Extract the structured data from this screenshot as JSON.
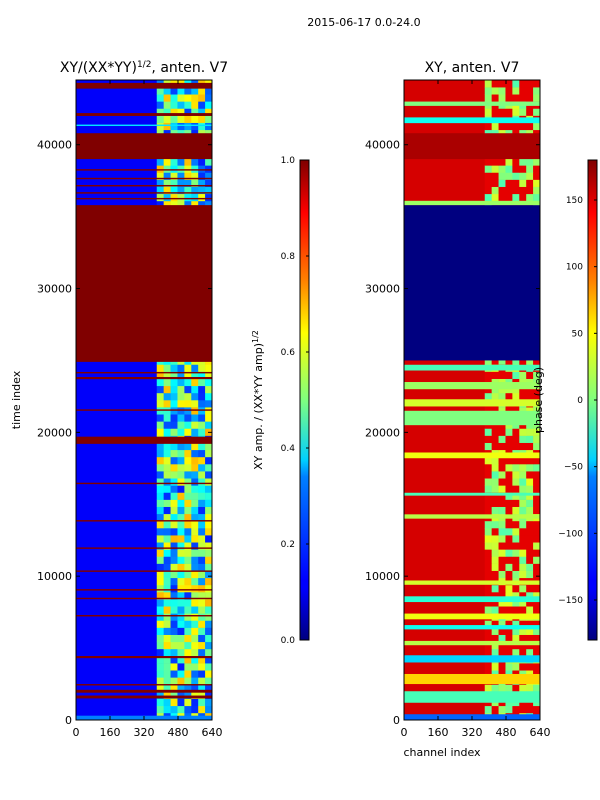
{
  "suptitle": "2015-06-17 0.0-24.0",
  "xlabel": "channel index",
  "colors": {
    "low": "#00007f",
    "mid": "#7fff7f",
    "high": "#7f0000",
    "edge": "#000000"
  },
  "chart_data": [
    {
      "type": "heatmap",
      "title_prefix": "XY/(XX*YY)",
      "title_exp": "1/2",
      "title_suffix": ", anten. V7",
      "xlabel": "",
      "ylabel": "time index",
      "xlim": [
        0,
        640
      ],
      "ylim": [
        0,
        44500
      ],
      "xticks": [
        0,
        160,
        320,
        480,
        640
      ],
      "yticks": [
        0,
        10000,
        20000,
        30000,
        40000
      ],
      "colorbar": {
        "label_prefix": "XY amp. / (XX*YY amp)",
        "label_exp": "1/2",
        "range": [
          0.0,
          1.0
        ],
        "ticks": [
          "0.0",
          "0.2",
          "0.4",
          "0.6",
          "0.8",
          "1.0"
        ]
      },
      "background_value": 0.12,
      "bright_columns": [
        380,
        640
      ],
      "bands": [
        {
          "from": 0,
          "to": 300,
          "value": 0.25
        },
        {
          "from": 1500,
          "to": 1700,
          "value": 1.0
        },
        {
          "from": 1900,
          "to": 2100,
          "value": 1.0
        },
        {
          "from": 2400,
          "to": 2500,
          "value": 1.0
        },
        {
          "from": 4300,
          "to": 4450,
          "value": 1.0
        },
        {
          "from": 7200,
          "to": 7300,
          "value": 1.0
        },
        {
          "from": 8400,
          "to": 8500,
          "value": 1.0
        },
        {
          "from": 9000,
          "to": 9100,
          "value": 1.0
        },
        {
          "from": 10300,
          "to": 10400,
          "value": 1.0
        },
        {
          "from": 11900,
          "to": 12000,
          "value": 1.0
        },
        {
          "from": 13800,
          "to": 13900,
          "value": 1.0
        },
        {
          "from": 16400,
          "to": 16500,
          "value": 1.0
        },
        {
          "from": 19200,
          "to": 19700,
          "value": 1.0
        },
        {
          "from": 21500,
          "to": 21600,
          "value": 1.0
        },
        {
          "from": 23700,
          "to": 23850,
          "value": 1.0
        },
        {
          "from": 24100,
          "to": 24200,
          "value": 1.0
        },
        {
          "from": 24900,
          "to": 35800,
          "value": 1.0
        },
        {
          "from": 36200,
          "to": 36300,
          "value": 1.0
        },
        {
          "from": 36600,
          "to": 36700,
          "value": 1.0
        },
        {
          "from": 37100,
          "to": 37200,
          "value": 1.0
        },
        {
          "from": 37600,
          "to": 37700,
          "value": 1.0
        },
        {
          "from": 38200,
          "to": 38300,
          "value": 1.0
        },
        {
          "from": 39000,
          "to": 40800,
          "value": 1.0
        },
        {
          "from": 41300,
          "to": 41400,
          "value": 0.35
        },
        {
          "from": 42000,
          "to": 42200,
          "value": 1.0
        },
        {
          "from": 43900,
          "to": 44300,
          "value": 1.0
        }
      ]
    },
    {
      "type": "heatmap",
      "title_prefix": "XY, anten. V7",
      "title_exp": "",
      "title_suffix": "",
      "xlabel": "channel index",
      "ylabel": "",
      "xlim": [
        0,
        640
      ],
      "ylim": [
        0,
        44500
      ],
      "xticks": [
        0,
        160,
        320,
        480,
        640
      ],
      "yticks": [
        0,
        10000,
        20000,
        30000,
        40000
      ],
      "colorbar": {
        "label_prefix": "phase (deg)",
        "label_exp": "",
        "range": [
          -180,
          180
        ],
        "ticks": [
          "−150",
          "−100",
          "−50",
          "0",
          "50",
          "100",
          "150"
        ]
      },
      "background_value": 150,
      "bright_columns": [
        380,
        640
      ],
      "bands": [
        {
          "from": 0,
          "to": 400,
          "value": -100
        },
        {
          "from": 1200,
          "to": 2000,
          "value": -20
        },
        {
          "from": 2500,
          "to": 3200,
          "value": 60
        },
        {
          "from": 4000,
          "to": 4500,
          "value": -60
        },
        {
          "from": 5200,
          "to": 5500,
          "value": 20
        },
        {
          "from": 6300,
          "to": 6600,
          "value": -40
        },
        {
          "from": 7000,
          "to": 7400,
          "value": 40
        },
        {
          "from": 8200,
          "to": 8600,
          "value": -30
        },
        {
          "from": 9400,
          "to": 9700,
          "value": 30
        },
        {
          "from": 14000,
          "to": 14300,
          "value": 20
        },
        {
          "from": 15600,
          "to": 15800,
          "value": -20
        },
        {
          "from": 18200,
          "to": 18600,
          "value": 40
        },
        {
          "from": 20500,
          "to": 21500,
          "value": 0
        },
        {
          "from": 21800,
          "to": 22300,
          "value": 30
        },
        {
          "from": 23000,
          "to": 23500,
          "value": 10
        },
        {
          "from": 24300,
          "to": 24700,
          "value": -20
        },
        {
          "from": 25000,
          "to": 35800,
          "value": -180
        },
        {
          "from": 35800,
          "to": 36100,
          "value": 10
        },
        {
          "from": 39000,
          "to": 40800,
          "value": 165
        },
        {
          "from": 41500,
          "to": 41900,
          "value": -40
        },
        {
          "from": 42700,
          "to": 43000,
          "value": 0
        }
      ]
    }
  ]
}
